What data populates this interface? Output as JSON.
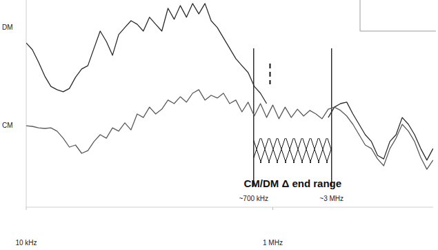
{
  "chart_data": {
    "type": "line",
    "x": [
      10000,
      11220,
      12590,
      14130,
      15850,
      17780,
      19950,
      22390,
      25120,
      28180,
      31620,
      35480,
      39810,
      44670,
      50120,
      56230,
      63100,
      70790,
      79430,
      89130,
      100000,
      112200,
      125900,
      141300,
      158500,
      177800,
      199500,
      223900,
      251200,
      281800,
      316200,
      354800,
      398100,
      446700,
      501200,
      562300,
      631000,
      707900,
      794300,
      891300,
      1000000,
      1122000,
      1259000,
      1413000,
      1585000,
      1778000,
      1995000,
      2239000,
      2512000,
      2818000,
      3162000,
      3548000,
      3981000,
      4467000,
      5012000,
      5623000,
      6310000,
      7079000,
      7943000,
      8913000,
      10000000,
      11220000,
      12590000,
      14130000,
      15850000,
      17780000,
      19950000
    ],
    "series": [
      {
        "name": "DM",
        "color": "#2a2a2a",
        "line_style": "solid",
        "values": [
          79.3,
          76,
          70,
          63.3,
          58.3,
          56.7,
          55.7,
          57.3,
          62.7,
          66.7,
          68.3,
          76.7,
          85,
          80,
          73.3,
          83.3,
          86.7,
          90,
          88.3,
          85,
          91.7,
          88.3,
          85,
          96,
          90.7,
          97.3,
          91.7,
          98.3,
          93.3,
          98.3,
          90,
          86.7,
          81.7,
          76.7,
          71.7,
          68.3,
          65,
          58.3,
          55,
          50,
          null,
          null,
          null,
          null,
          null,
          null,
          null,
          null,
          null,
          43.3,
          48.3,
          50,
          50.7,
          45,
          40,
          35,
          31.7,
          25,
          23.3,
          31.7,
          35,
          43.3,
          40,
          35,
          28.3,
          22.7,
          28.3
        ]
      },
      {
        "name": "CM",
        "color": "#5a5a5a",
        "line_style": "solid",
        "values": [
          39.3,
          39,
          38.3,
          38,
          38.3,
          36.7,
          33.3,
          29,
          30,
          26,
          27.3,
          31.7,
          35,
          33.3,
          38.3,
          36.7,
          40.7,
          37.3,
          45,
          43.3,
          48.3,
          45,
          47.3,
          51.7,
          50,
          53.3,
          50.7,
          55,
          56.7,
          51.7,
          54,
          52.7,
          55,
          50,
          51.7,
          46,
          50.7,
          44,
          50,
          43.3,
          49.3,
          42.7,
          48.3,
          43.3,
          47.3,
          44,
          46.7,
          45,
          42.7,
          47.3,
          48.3,
          46.7,
          44,
          40,
          35,
          30,
          28.3,
          23.3,
          20,
          28.3,
          33.3,
          40,
          36.7,
          31.7,
          24,
          18.3,
          22.7
        ]
      }
    ],
    "xlim": [
      10000,
      20000000
    ],
    "ylim": [
      0,
      100
    ],
    "xticks": [
      {
        "value": 10000,
        "label": "10 kHz"
      },
      {
        "value": 1000000,
        "label": "1 MHz"
      }
    ],
    "log": "x",
    "grid": false,
    "tick_labels": "x",
    "vlines": [
      {
        "x": 700000,
        "label": "~700 kHz",
        "line_style": "solid"
      },
      {
        "x": 950000,
        "line_style": "dashed"
      },
      {
        "x": 3000000,
        "label": "~3 MHz",
        "line_style": "solid"
      }
    ],
    "region": {
      "x": [
        700000,
        3000000
      ],
      "label": "CM/DM Δ end range"
    }
  }
}
